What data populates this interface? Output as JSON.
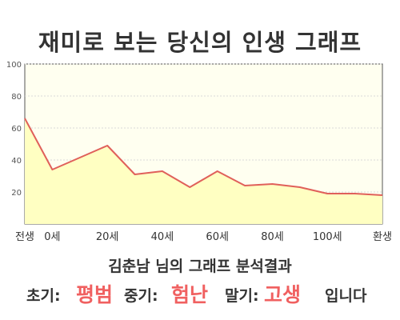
{
  "title": "재미로 보는 당신의 인생 그래프",
  "chart_data": {
    "type": "area",
    "x": [
      -10,
      0,
      20,
      30,
      40,
      50,
      60,
      70,
      80,
      90,
      100,
      110,
      120
    ],
    "values": [
      66,
      34,
      49,
      31,
      33,
      23,
      33,
      24,
      25,
      23,
      19,
      19,
      18
    ],
    "x_ticks": [
      {
        "x": -10,
        "label": "전생"
      },
      {
        "x": 0,
        "label": "0세"
      },
      {
        "x": 20,
        "label": "20세"
      },
      {
        "x": 40,
        "label": "40세"
      },
      {
        "x": 60,
        "label": "60세"
      },
      {
        "x": 80,
        "label": "80세"
      },
      {
        "x": 100,
        "label": "100세"
      },
      {
        "x": 120,
        "label": "환생"
      }
    ],
    "ylim": [
      0,
      100
    ],
    "y_ticks": [
      "20",
      "40",
      "60",
      "80",
      "100"
    ],
    "grid": true,
    "colors": {
      "line": "#e0605a",
      "fill": "#ffffc2",
      "plot_bg": "#fffff0",
      "grid": "#d8d8d8"
    }
  },
  "result": {
    "subtitle": "김춘남 님의 그래프 분석결과",
    "early_label": "초기:",
    "early_value": "평범",
    "middle_label": "중기:",
    "middle_value": "험난",
    "late_label": "말기:",
    "late_value": "고생",
    "ending": "입니다",
    "highlight_color": "#f06060"
  }
}
